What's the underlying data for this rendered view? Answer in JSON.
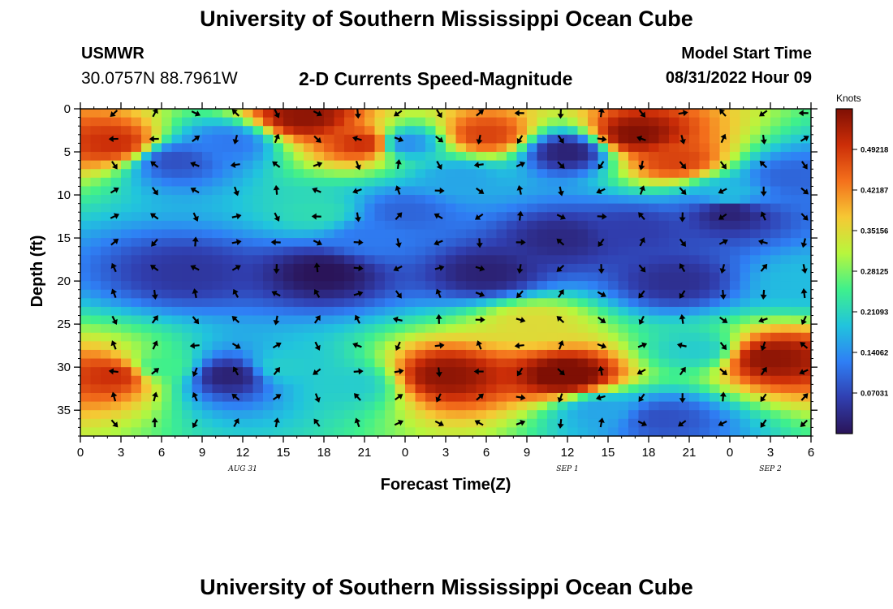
{
  "header": {
    "title": "University of Southern Mississippi Ocean Cube",
    "station": "USMWR",
    "coordinates": "30.0757N  88.7961W",
    "plot_title": "2-D Currents Speed-Magnitude",
    "model_start_label": "Model Start Time",
    "model_start_value": "08/31/2022 Hour 09"
  },
  "footer": {
    "title": "University of Southern Mississippi Ocean Cube"
  },
  "chart_data": {
    "type": "heatmap",
    "title": "2-D Currents Speed-Magnitude",
    "xlabel": "Forecast Time(Z)",
    "ylabel": "Depth (ft)",
    "x_tick_labels": [
      "0",
      "3",
      "6",
      "9",
      "12",
      "15",
      "18",
      "21",
      "0",
      "3",
      "6",
      "9",
      "12",
      "15",
      "18",
      "21",
      "0",
      "3",
      "6"
    ],
    "x_range_hours": [
      0,
      54
    ],
    "date_labels": [
      {
        "text": "AUG 31",
        "hour": 12
      },
      {
        "text": "SEP 1",
        "hour": 36
      },
      {
        "text": "SEP 2",
        "hour": 51
      }
    ],
    "y_tick_labels": [
      "0",
      "5",
      "10",
      "15",
      "20",
      "25",
      "30",
      "35"
    ],
    "y_range_ft": [
      0,
      38
    ],
    "colorbar": {
      "title": "Knots",
      "tick_labels": [
        "0.49218",
        "0.42187",
        "0.35156",
        "0.28125",
        "0.21093",
        "0.14062",
        "0.07031"
      ],
      "range": [
        0,
        0.5625
      ],
      "colors": [
        "#2a1458",
        "#303fb0",
        "#2f7ff5",
        "#21c4dd",
        "#3ff08c",
        "#b8f63d",
        "#f6c834",
        "#f4701c",
        "#cc2e08",
        "#7f0f04"
      ]
    },
    "speed_field": [
      {
        "t": 2.5,
        "d": 4,
        "v": 0.5
      },
      {
        "t": 2.5,
        "d": 31,
        "v": 0.5
      },
      {
        "t": 7,
        "d": 6,
        "v": 0.08
      },
      {
        "t": 8,
        "d": 19,
        "v": 0.05
      },
      {
        "t": 11,
        "d": 31,
        "v": 0.02
      },
      {
        "t": 11,
        "d": 4,
        "v": 0.12
      },
      {
        "t": 16.5,
        "d": 1,
        "v": 0.55
      },
      {
        "t": 21,
        "d": 4,
        "v": 0.5
      },
      {
        "t": 17.5,
        "d": 12,
        "v": 0.22
      },
      {
        "t": 18,
        "d": 19,
        "v": 0.0
      },
      {
        "t": 15,
        "d": 30,
        "v": 0.2
      },
      {
        "t": 20,
        "d": 32,
        "v": 0.2
      },
      {
        "t": 21.5,
        "d": 15,
        "v": 0.12
      },
      {
        "t": 24,
        "d": 12,
        "v": 0.1
      },
      {
        "t": 27,
        "d": 31,
        "v": 0.55
      },
      {
        "t": 24,
        "d": 4,
        "v": 0.14
      },
      {
        "t": 28,
        "d": 8,
        "v": 0.16
      },
      {
        "t": 30,
        "d": 3,
        "v": 0.48
      },
      {
        "t": 30,
        "d": 19,
        "v": 0.02
      },
      {
        "t": 36,
        "d": 31,
        "v": 0.58
      },
      {
        "t": 33.5,
        "d": 25,
        "v": 0.35
      },
      {
        "t": 36,
        "d": 5,
        "v": 0.02
      },
      {
        "t": 35.5,
        "d": 15,
        "v": 0.03
      },
      {
        "t": 41,
        "d": 3,
        "v": 0.56
      },
      {
        "t": 44,
        "d": 6,
        "v": 0.48
      },
      {
        "t": 41,
        "d": 14,
        "v": 0.06
      },
      {
        "t": 44,
        "d": 20,
        "v": 0.04
      },
      {
        "t": 48,
        "d": 10,
        "v": 0.18
      },
      {
        "t": 48,
        "d": 12,
        "v": 0.02
      },
      {
        "t": 51,
        "d": 29,
        "v": 0.55
      },
      {
        "t": 52.5,
        "d": 8,
        "v": 0.1
      },
      {
        "t": 45.5,
        "d": 28,
        "v": 0.2
      },
      {
        "t": 38.5,
        "d": 35,
        "v": 0.16
      },
      {
        "t": 43,
        "d": 36,
        "v": 0.08
      },
      {
        "t": 6,
        "d": 30,
        "v": 0.25
      },
      {
        "t": 53.5,
        "d": 20,
        "v": 0.18
      }
    ],
    "arrow_times_hours": [
      2.5,
      5.5,
      8.5,
      11.5,
      14.5,
      17.5,
      20.5,
      23.5,
      26.5,
      29.5,
      32.5,
      35.5,
      38.5,
      41.5,
      44.5,
      47.5,
      50.5,
      53.5
    ],
    "arrow_depths_ft": [
      0.5,
      3.5,
      6.5,
      9.5,
      12.5,
      15.5,
      18.5,
      21.5,
      24.5,
      27.5,
      30.5,
      33.5,
      36.5
    ]
  }
}
